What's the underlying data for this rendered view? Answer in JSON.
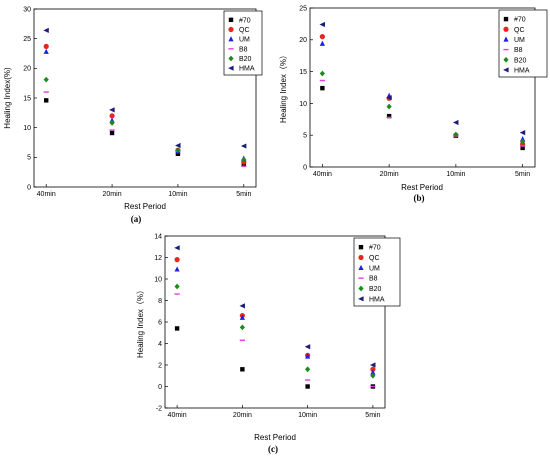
{
  "chart_data": [
    {
      "type": "scatter",
      "panel_label": "(a)",
      "title": "",
      "xlabel": "Rest Period",
      "ylabel": "Healing Index(%)",
      "categories": [
        "40min",
        "20min",
        "10min",
        "5min"
      ],
      "ylim": [
        0,
        30
      ],
      "yticks": [
        0,
        5,
        10,
        15,
        20,
        25,
        30
      ],
      "legend_position": "top-right",
      "series": [
        {
          "name": "#70",
          "values": [
            14.6,
            9.1,
            5.6,
            3.8
          ]
        },
        {
          "name": "QC",
          "values": [
            23.7,
            12.0,
            6.2,
            4.2
          ]
        },
        {
          "name": "UM",
          "values": [
            22.8,
            11.2,
            6.0,
            4.8
          ]
        },
        {
          "name": "B8",
          "values": [
            16.0,
            9.6,
            6.0,
            3.5
          ]
        },
        {
          "name": "B20",
          "values": [
            18.1,
            10.8,
            6.2,
            4.6
          ]
        },
        {
          "name": "HMA",
          "values": [
            26.4,
            13.0,
            7.0,
            6.9
          ]
        }
      ]
    },
    {
      "type": "scatter",
      "panel_label": "(b)",
      "title": "",
      "xlabel": "Rest Period",
      "ylabel": "Healing Index（%）",
      "categories": [
        "40min",
        "20min",
        "10min",
        "5min"
      ],
      "ylim": [
        0,
        25
      ],
      "yticks": [
        0,
        5,
        10,
        15,
        20,
        25
      ],
      "legend_position": "top-right",
      "series": [
        {
          "name": "#70",
          "values": [
            12.4,
            8.0,
            4.9,
            3.0
          ]
        },
        {
          "name": "QC",
          "values": [
            20.5,
            10.8,
            5.0,
            3.6
          ]
        },
        {
          "name": "UM",
          "values": [
            19.4,
            11.2,
            5.1,
            4.4
          ]
        },
        {
          "name": "B8",
          "values": [
            13.6,
            7.8,
            4.9,
            3.3
          ]
        },
        {
          "name": "B20",
          "values": [
            14.7,
            9.5,
            5.1,
            4.0
          ]
        },
        {
          "name": "HMA",
          "values": [
            22.4,
            10.9,
            7.0,
            5.4
          ]
        }
      ]
    },
    {
      "type": "scatter",
      "panel_label": "(c)",
      "title": "",
      "xlabel": "Rest Period",
      "ylabel": "Healing Index（%）",
      "categories": [
        "40min",
        "20min",
        "10min",
        "5min"
      ],
      "ylim": [
        -2,
        14
      ],
      "yticks": [
        -2,
        0,
        2,
        4,
        6,
        8,
        10,
        12,
        14
      ],
      "legend_position": "top-right",
      "series": [
        {
          "name": "#70",
          "values": [
            5.4,
            1.6,
            0.0,
            0.0
          ]
        },
        {
          "name": "QC",
          "values": [
            11.8,
            6.6,
            2.9,
            1.6
          ]
        },
        {
          "name": "UM",
          "values": [
            10.9,
            6.4,
            2.8,
            1.3
          ]
        },
        {
          "name": "B8",
          "values": [
            8.6,
            4.3,
            0.6,
            0.0
          ]
        },
        {
          "name": "B20",
          "values": [
            9.3,
            5.5,
            1.6,
            1.0
          ]
        },
        {
          "name": "HMA",
          "values": [
            12.9,
            7.5,
            3.7,
            2.0
          ]
        }
      ]
    }
  ],
  "series_styles": [
    {
      "marker": "square",
      "color": "#000000"
    },
    {
      "marker": "circle",
      "color": "#e8251f"
    },
    {
      "marker": "triangle-up",
      "color": "#1f1fe8"
    },
    {
      "marker": "dash",
      "color": "#e040e0"
    },
    {
      "marker": "diamond",
      "color": "#1e8a1e"
    },
    {
      "marker": "triangle-left",
      "color": "#1c1c7a"
    }
  ]
}
